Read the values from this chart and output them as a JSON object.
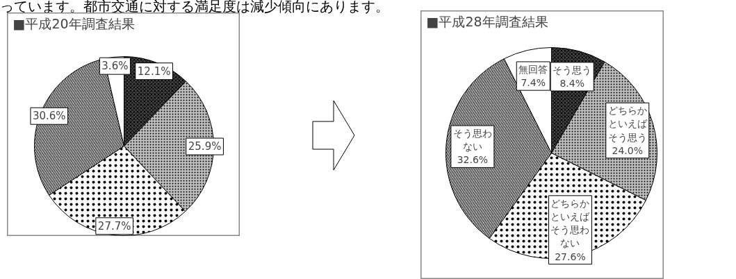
{
  "chart_data": [
    {
      "type": "pie",
      "title": "■平成20年調査結果",
      "annotations": [
        "っています。都市交通に対する満足度は減少傾向にあります。"
      ],
      "categories": [
        null,
        null,
        null,
        null,
        null
      ],
      "values": [
        12.1,
        25.9,
        27.7,
        30.6,
        3.6
      ],
      "value_labels": [
        "12.1%",
        "25.9%",
        "27.7%",
        "30.6%",
        "3.6%"
      ],
      "colors": [
        "#404040",
        "#c0c0c0",
        "#ffffff",
        "#d0d0d0",
        "#ffffff"
      ]
    },
    {
      "type": "pie",
      "title": "■平成28年調査結果",
      "categories": [
        "そう思う",
        "どちらかといえばそう思う",
        "どちらかといえばそう思わない",
        "そう思わない",
        "無回答"
      ],
      "values": [
        8.4,
        24.0,
        27.6,
        32.6,
        7.4
      ],
      "value_labels": [
        "8.4%",
        "24.0%",
        "27.6%",
        "32.6%",
        "7.4%"
      ],
      "colors": [
        "#404040",
        "#c0c0c0",
        "#ffffff",
        "#d0d0d0",
        "#ffffff"
      ]
    }
  ]
}
